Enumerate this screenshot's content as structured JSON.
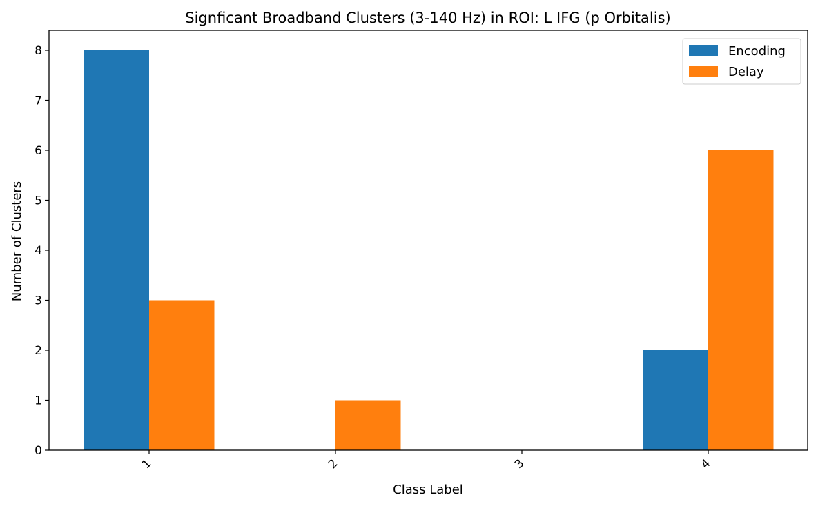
{
  "chart_data": {
    "type": "bar",
    "title": "Signficant Broadband Clusters (3-140 Hz) in ROI: L IFG (p Orbitalis)",
    "xlabel": "Class Label",
    "ylabel": "Number of Clusters",
    "categories": [
      "1",
      "2",
      "3",
      "4"
    ],
    "series": [
      {
        "name": "Encoding",
        "values": [
          8,
          0,
          0,
          2
        ],
        "color": "#1f77b4"
      },
      {
        "name": "Delay",
        "values": [
          3,
          1,
          0,
          6
        ],
        "color": "#ff7f0e"
      }
    ],
    "ylim": [
      0,
      8.4
    ],
    "yticks": [
      0,
      1,
      2,
      3,
      4,
      5,
      6,
      7,
      8
    ],
    "grid": false,
    "legend_position": "top-right",
    "xtick_rotation": "45"
  }
}
